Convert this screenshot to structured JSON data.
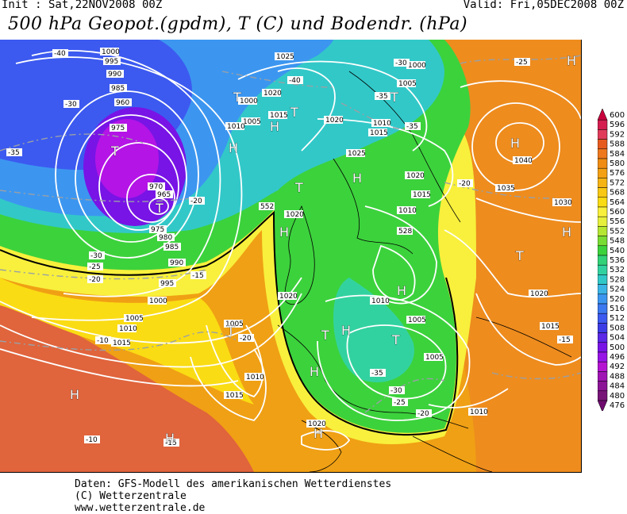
{
  "header": {
    "init": "Init : Sat,22NOV2008 00Z",
    "valid": "Valid: Fri,05DEC2008 00Z",
    "title": "500 hPa Geopot.(gpdm), T (C) und Bodendr. (hPa)"
  },
  "footer": {
    "line1": "Daten: GFS-Modell des amerikanischen Wetterdienstes",
    "line2": "(C) Wetterzentrale",
    "line3": "www.wetterzentrale.de"
  },
  "legend": {
    "levels": [
      "600",
      "596",
      "592",
      "588",
      "584",
      "580",
      "576",
      "572",
      "568",
      "564",
      "560",
      "556",
      "552",
      "548",
      "540",
      "536",
      "532",
      "528",
      "524",
      "520",
      "516",
      "512",
      "508",
      "504",
      "500",
      "496",
      "492",
      "488",
      "484",
      "480",
      "476"
    ],
    "colors": [
      "#c8003c",
      "#d41e50",
      "#e03c5a",
      "#e65a1e",
      "#ee781e",
      "#f08c14",
      "#f4a014",
      "#f6b414",
      "#f8c814",
      "#fadc14",
      "#f8f03c",
      "#e6f03c",
      "#b4e632",
      "#78dc32",
      "#3cd23c",
      "#32d278",
      "#32d2a0",
      "#32c8c8",
      "#3cb4e6",
      "#3c96f0",
      "#3c78f0",
      "#3c5af0",
      "#3c3ce6",
      "#5a28e6",
      "#7814e6",
      "#9614e6",
      "#b414d2",
      "#a014b4",
      "#8c1496",
      "#781478",
      "#6e0a6e"
    ]
  },
  "map": {
    "pressure_labels": [
      "1000",
      "995",
      "990",
      "985",
      "980",
      "975",
      "970",
      "965",
      "960",
      "1025",
      "1020",
      "1015",
      "1010",
      "1005",
      "1040",
      "1035",
      "1030"
    ],
    "temp_labels": [
      "-40",
      "-35",
      "-30",
      "-25",
      "-20",
      "-15",
      "-10"
    ],
    "height_labels": [
      "552",
      "528"
    ],
    "centres": [
      "H",
      "T"
    ]
  },
  "colors": {
    "deep_purple": "#b414e6",
    "blue": "#3c5af0",
    "cyan": "#32c8c8",
    "green": "#3cd23c",
    "yellow": "#f8f03c",
    "orange": "#f0a014",
    "red_orange": "#e0643c",
    "isobar": "#ffffff"
  }
}
